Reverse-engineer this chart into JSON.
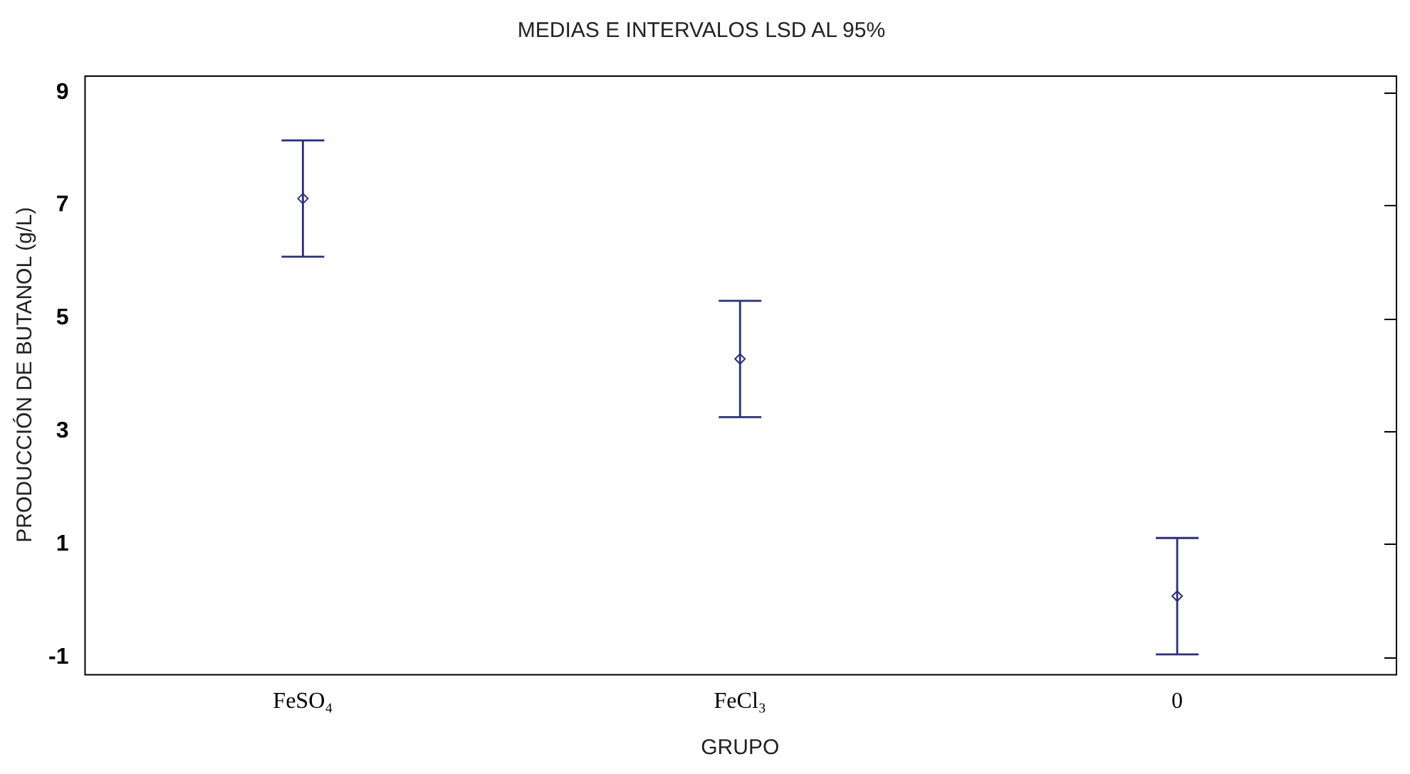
{
  "chart_data": {
    "type": "scatter",
    "title": "MEDIAS E INTERVALOS LSD AL 95%",
    "xlabel": "GRUPO",
    "ylabel": "PRODUCCIÓN DE BUTANOL (g/L)",
    "categories": [
      "FeSO₄",
      "FeCl₃",
      "0"
    ],
    "series": [
      {
        "color": "#2b2f7a",
        "values": [
          7.12,
          4.28,
          0.08
        ],
        "errors": [
          1.03,
          1.03,
          1.03
        ]
      }
    ],
    "ylim": [
      -1.3,
      9.3
    ],
    "yticks": [
      -1,
      1,
      3,
      5,
      7,
      9
    ],
    "grid": false,
    "legend": false,
    "marker": "diamond"
  }
}
